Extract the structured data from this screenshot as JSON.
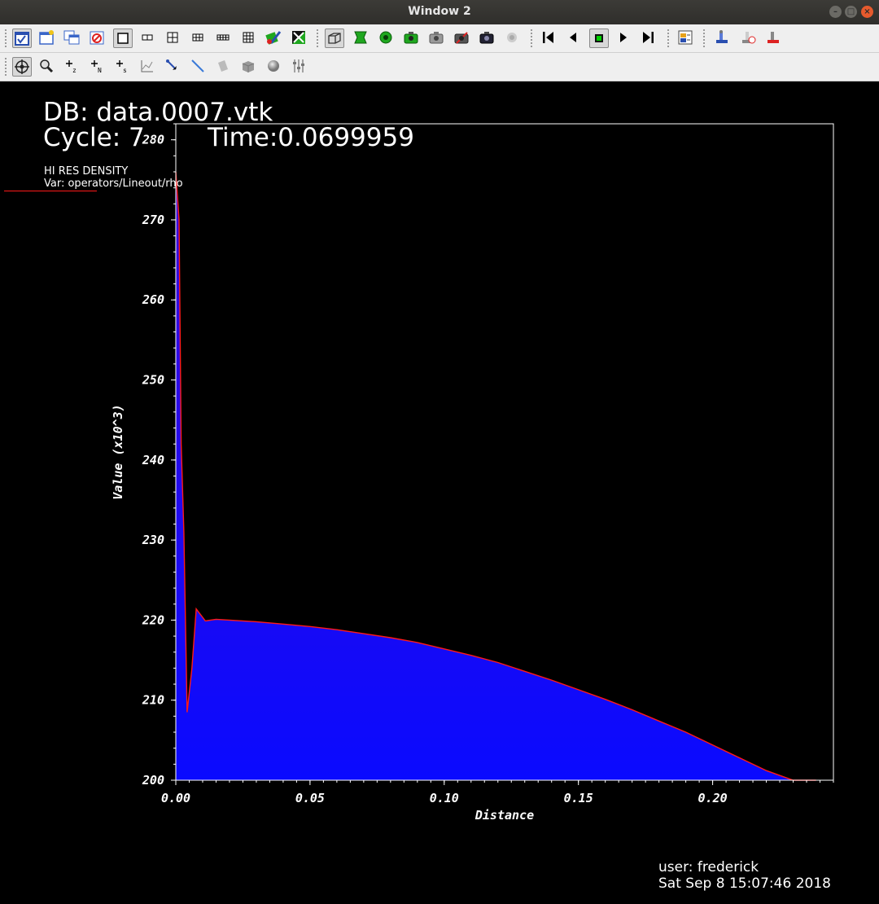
{
  "window": {
    "title": "Window 2"
  },
  "annotations": {
    "db": "DB: data.0007.vtk",
    "cycle": "Cycle: 7",
    "time": "Time:0.0699959",
    "plot_title": "HI RES DENSITY",
    "var": "Var: operators/Lineout/rho",
    "user": "user: frederick",
    "date": "Sat Sep  8 15:07:46 2018"
  },
  "colors": {
    "line": "#ff1a1a",
    "fill_top": "#3a0ad8",
    "fill_bottom": "#0a0aff",
    "accent": "#00c000"
  },
  "chart_data": {
    "type": "area",
    "title": "",
    "xlabel": "Distance",
    "ylabel": "Value (x10^3)",
    "xlim": [
      0.0,
      0.245
    ],
    "ylim": [
      200,
      282
    ],
    "xticks": [
      "0.00",
      "0.05",
      "0.10",
      "0.15",
      "0.20"
    ],
    "yticks": [
      "200",
      "210",
      "220",
      "230",
      "240",
      "250",
      "260",
      "270",
      "280"
    ],
    "series": [
      {
        "x": [
          0.0,
          0.0012,
          0.002,
          0.003,
          0.0042,
          0.006,
          0.0076,
          0.011,
          0.015,
          0.02,
          0.03,
          0.04,
          0.05,
          0.06,
          0.07,
          0.08,
          0.09,
          0.1,
          0.11,
          0.12,
          0.13,
          0.14,
          0.15,
          0.16,
          0.17,
          0.18,
          0.19,
          0.2,
          0.21,
          0.22,
          0.23,
          0.2385
        ],
        "y": [
          276,
          270,
          242,
          231,
          208.5,
          214,
          221.4,
          219.9,
          220.1,
          220.0,
          219.8,
          219.5,
          219.2,
          218.8,
          218.3,
          217.8,
          217.2,
          216.4,
          215.6,
          214.7,
          213.6,
          212.5,
          211.3,
          210.1,
          208.8,
          207.4,
          206.0,
          204.4,
          202.8,
          201.2,
          199.8,
          199.9
        ]
      }
    ]
  }
}
